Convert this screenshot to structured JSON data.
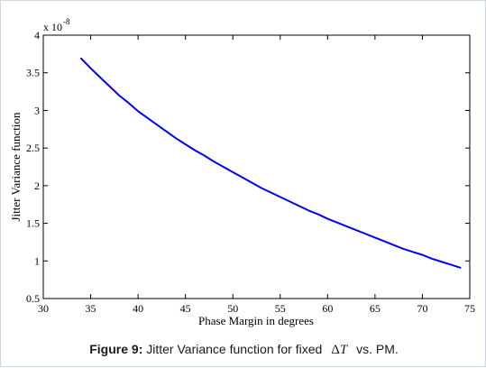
{
  "chart_data": {
    "type": "line",
    "xlabel": "Phase Margin in degrees",
    "ylabel": "Jitter Variance function",
    "exponent_label": {
      "base": "x 10",
      "exponent": "-8"
    },
    "xlim": [
      30,
      75
    ],
    "ylim": [
      0.5,
      4
    ],
    "xticks": [
      30,
      35,
      40,
      45,
      50,
      55,
      60,
      65,
      70,
      75
    ],
    "yticks": [
      0.5,
      1,
      1.5,
      2,
      2.5,
      3,
      3.5,
      4
    ],
    "xtick_labels": [
      "30",
      "35",
      "40",
      "45",
      "50",
      "55",
      "60",
      "65",
      "70",
      "75"
    ],
    "ytick_labels": [
      "0.5",
      "1",
      "1.5",
      "2",
      "2.5",
      "3",
      "3.5",
      "4"
    ],
    "grid": false,
    "series": [
      {
        "color": "#0000ff",
        "x": [
          34,
          35,
          36,
          37,
          38,
          39,
          40,
          41,
          42,
          43,
          44,
          45,
          46,
          47,
          48,
          49,
          50,
          51,
          52,
          53,
          54,
          55,
          56,
          57,
          58,
          59,
          60,
          61,
          62,
          63,
          64,
          65,
          66,
          67,
          68,
          69,
          70,
          71,
          72,
          73,
          74
        ],
        "y": [
          3.69,
          3.56,
          3.44,
          3.32,
          3.2,
          3.1,
          2.99,
          2.9,
          2.81,
          2.72,
          2.63,
          2.55,
          2.47,
          2.4,
          2.32,
          2.25,
          2.18,
          2.11,
          2.04,
          1.97,
          1.91,
          1.85,
          1.79,
          1.73,
          1.67,
          1.62,
          1.56,
          1.51,
          1.46,
          1.41,
          1.36,
          1.31,
          1.26,
          1.21,
          1.16,
          1.12,
          1.08,
          1.03,
          0.99,
          0.95,
          0.91
        ]
      }
    ]
  },
  "caption": {
    "label": "Figure 9:",
    "text_before": "Jitter Variance function for fixed",
    "delta_symbol": "Δ",
    "delta_var": "T",
    "text_after": "vs. PM."
  }
}
